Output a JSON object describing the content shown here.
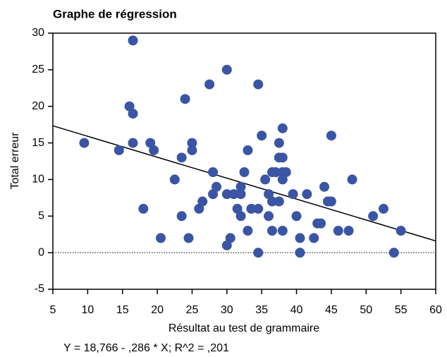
{
  "chart_data": {
    "type": "scatter",
    "title": "Graphe de régression",
    "xlabel": "Résultat au test de grammaire",
    "ylabel": "Total erreur",
    "annotation": "Y = 18,766 - ,286 * X; R^2 = ,201",
    "regression": {
      "intercept": 18.766,
      "slope": -0.286
    },
    "reference_line": 0,
    "xlim": [
      5,
      60
    ],
    "xticks": [
      5,
      10,
      15,
      20,
      25,
      30,
      35,
      40,
      45,
      50,
      55,
      60
    ],
    "ylim": [
      -5,
      30
    ],
    "yticks": [
      -5,
      0,
      5,
      10,
      15,
      20,
      25,
      30
    ],
    "color": "#3a55a4",
    "x": [
      9.5,
      14.5,
      16.5,
      16,
      16.5,
      16.5,
      18,
      19,
      19.5,
      20.5,
      22.5,
      24,
      23.5,
      23.5,
      24.5,
      25,
      25,
      26,
      26.5,
      27.5,
      28,
      28,
      28.5,
      30,
      30,
      30,
      30.5,
      31,
      31.5,
      32,
      32,
      32,
      32.5,
      33,
      33,
      33.5,
      34.5,
      34.5,
      34.5,
      35,
      35.5,
      36,
      36,
      36.5,
      36.5,
      36.5,
      37.5,
      37.5,
      37,
      37.5,
      38,
      38,
      38,
      38,
      38,
      38.5,
      39.5,
      40,
      40.5,
      40.5,
      41.5,
      42.5,
      43,
      43.5,
      44,
      44.5,
      45,
      45,
      46,
      47.5,
      48,
      51,
      52.5,
      54,
      55
    ],
    "y": [
      15,
      14,
      29,
      20,
      19,
      15,
      6,
      15,
      14,
      2,
      10,
      21,
      13,
      5,
      2,
      15,
      14,
      6,
      7,
      23,
      11,
      8,
      9,
      25,
      8,
      1,
      2,
      8,
      6,
      9,
      8,
      5,
      11,
      14,
      3,
      6,
      23,
      6,
      0,
      16,
      10,
      8,
      5,
      11,
      7,
      3,
      15,
      13,
      11,
      7,
      17,
      13,
      11,
      10,
      3,
      11,
      8,
      5,
      2,
      0,
      8,
      2,
      4,
      4,
      9,
      7,
      7,
      16,
      3,
      3,
      10,
      5,
      6,
      0,
      3
    ]
  }
}
